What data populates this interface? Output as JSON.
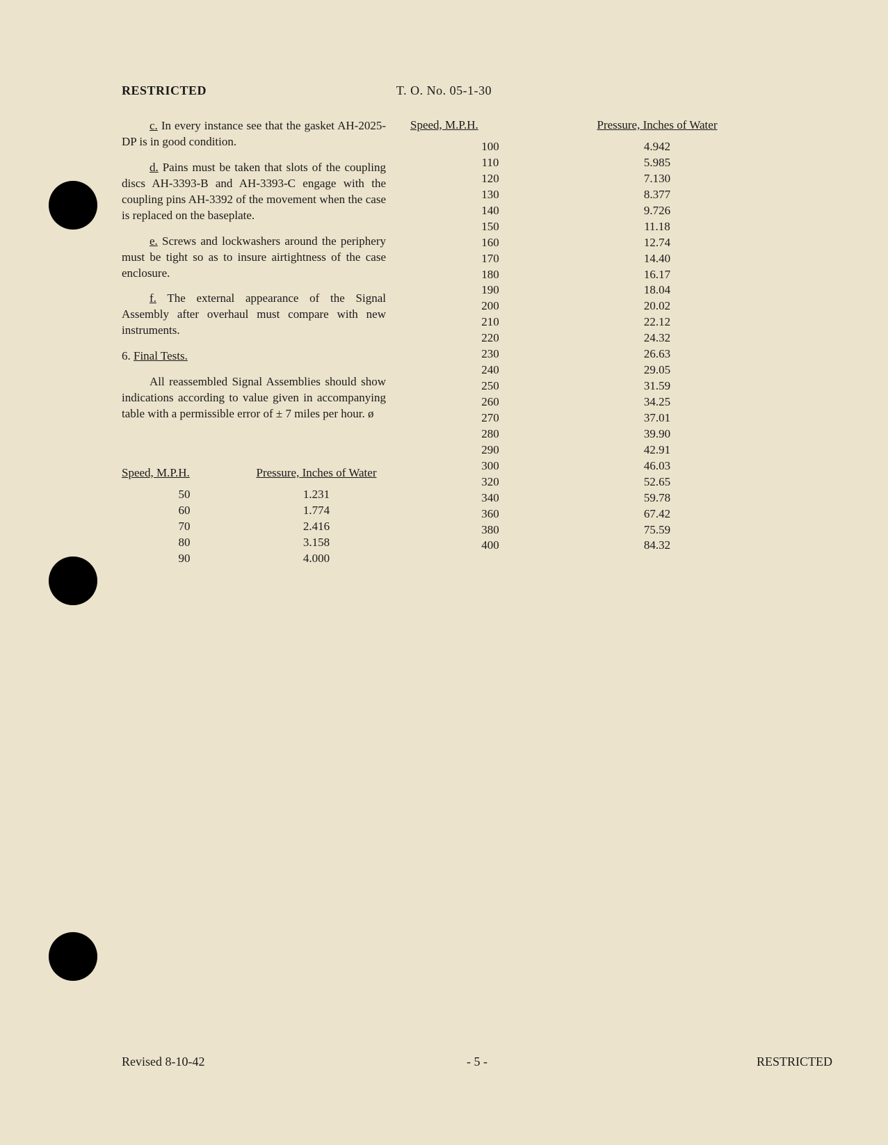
{
  "header": {
    "left": "RESTRICTED",
    "center": "T. O. No. 05-1-30"
  },
  "paragraphs": {
    "c_letter": "c.",
    "c_text": "In every instance see that the gasket AH-2025-DP is in good condition.",
    "d_letter": "d.",
    "d_text": "Pains must be taken that slots of the coupling discs AH-3393-B and AH-3393-C engage with the coupling pins AH-3392 of the movement when the case is replaced on the baseplate.",
    "e_letter": "e.",
    "e_text": "Screws and lockwashers around the periphery must be tight so as to insure airtightness of the case enclosure.",
    "f_letter": "f.",
    "f_text": "The external appearance of the Signal Assembly after overhaul must compare with new instruments.",
    "section_num": "6.",
    "section_title": "Final Tests.",
    "final_tests_para": "All reassembled Signal Assemblies should show indications according to value given in accompanying table with a permissible error of ± 7 miles per hour. ø",
    "leading_mark": "ø"
  },
  "columns": {
    "speed": "Speed, M.P.H.",
    "pressure": "Pressure, Inches of Water"
  },
  "table_left": {
    "rows": [
      {
        "speed": "50",
        "pressure": "1.231"
      },
      {
        "speed": "60",
        "pressure": "1.774"
      },
      {
        "speed": "70",
        "pressure": "2.416"
      },
      {
        "speed": "80",
        "pressure": "3.158"
      },
      {
        "speed": "90",
        "pressure": "4.000"
      }
    ]
  },
  "table_right": {
    "rows": [
      {
        "speed": "100",
        "pressure": "4.942"
      },
      {
        "speed": "110",
        "pressure": "5.985"
      },
      {
        "speed": "120",
        "pressure": "7.130"
      },
      {
        "speed": "130",
        "pressure": "8.377"
      },
      {
        "speed": "140",
        "pressure": "9.726"
      },
      {
        "speed": "150",
        "pressure": "11.18"
      },
      {
        "speed": "160",
        "pressure": "12.74"
      },
      {
        "speed": "170",
        "pressure": "14.40"
      },
      {
        "speed": "180",
        "pressure": "16.17"
      },
      {
        "speed": "190",
        "pressure": "18.04"
      },
      {
        "speed": "200",
        "pressure": "20.02"
      },
      {
        "speed": "210",
        "pressure": "22.12"
      },
      {
        "speed": "220",
        "pressure": "24.32"
      },
      {
        "speed": "230",
        "pressure": "26.63"
      },
      {
        "speed": "240",
        "pressure": "29.05"
      },
      {
        "speed": "250",
        "pressure": "31.59"
      },
      {
        "speed": "260",
        "pressure": "34.25"
      },
      {
        "speed": "270",
        "pressure": "37.01"
      },
      {
        "speed": "280",
        "pressure": "39.90"
      },
      {
        "speed": "290",
        "pressure": "42.91"
      },
      {
        "speed": "300",
        "pressure": "46.03"
      },
      {
        "speed": "320",
        "pressure": "52.65"
      },
      {
        "speed": "340",
        "pressure": "59.78"
      },
      {
        "speed": "360",
        "pressure": "67.42"
      },
      {
        "speed": "380",
        "pressure": "75.59"
      },
      {
        "speed": "400",
        "pressure": "84.32"
      }
    ]
  },
  "footer": {
    "left": "Revised  8-10-42",
    "center": "- 5 -",
    "right": "RESTRICTED"
  },
  "colors": {
    "page_bg": "#ece3cc",
    "text": "#1a1a1a",
    "hole": "#000000"
  }
}
